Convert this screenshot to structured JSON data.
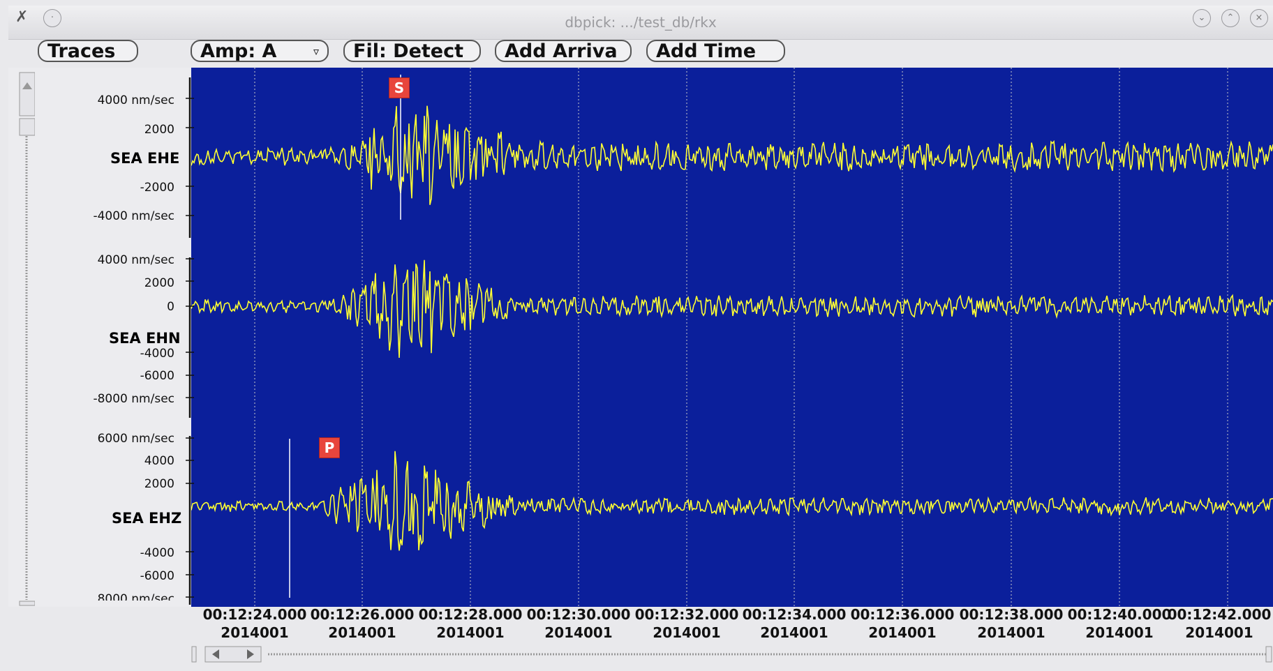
{
  "window": {
    "title": "dbpick: .../test_db/rkx",
    "controls": [
      "minimize",
      "maximize",
      "close"
    ]
  },
  "toolbar": {
    "traces_label": "Traces",
    "amp_label": "Amp: A",
    "filter_label": "Fil: Detect",
    "add_arrival_label": "Add Arriva",
    "add_time_label": "Add Time"
  },
  "traces": [
    {
      "label": "SEA EHE",
      "ticks": [
        "4000 nm/sec",
        "2000",
        "-2000",
        "-4000 nm/sec"
      ],
      "pick": "S"
    },
    {
      "label": "SEA EHN",
      "ticks": [
        "4000 nm/sec",
        "2000",
        "0",
        "-4000",
        "-6000",
        "-8000 nm/sec"
      ]
    },
    {
      "label": "SEA EHZ",
      "ticks": [
        "6000 nm/sec",
        "4000",
        "2000",
        "-4000",
        "-6000",
        "8000 nm/sec"
      ],
      "pick": "P"
    }
  ],
  "time_axis": [
    {
      "time": "00:12:24.000",
      "day": "2014001"
    },
    {
      "time": "00:12:26.000",
      "day": "2014001"
    },
    {
      "time": "00:12:28.000",
      "day": "2014001"
    },
    {
      "time": "00:12:30.000",
      "day": "2014001"
    },
    {
      "time": "00:12:32.000",
      "day": "2014001"
    },
    {
      "time": "00:12:34.000",
      "day": "2014001"
    },
    {
      "time": "00:12:36.000",
      "day": "2014001"
    },
    {
      "time": "00:12:38.000",
      "day": "2014001"
    },
    {
      "time": "00:12:40.000",
      "day": "2014001"
    },
    {
      "time": "00:12:42.000",
      "day": "2014001"
    }
  ],
  "colors": {
    "plot_background": "#0b1f9b",
    "trace": "#ffff33",
    "gridline": "#c8c8c8",
    "pick_flag": "#e8453c"
  }
}
